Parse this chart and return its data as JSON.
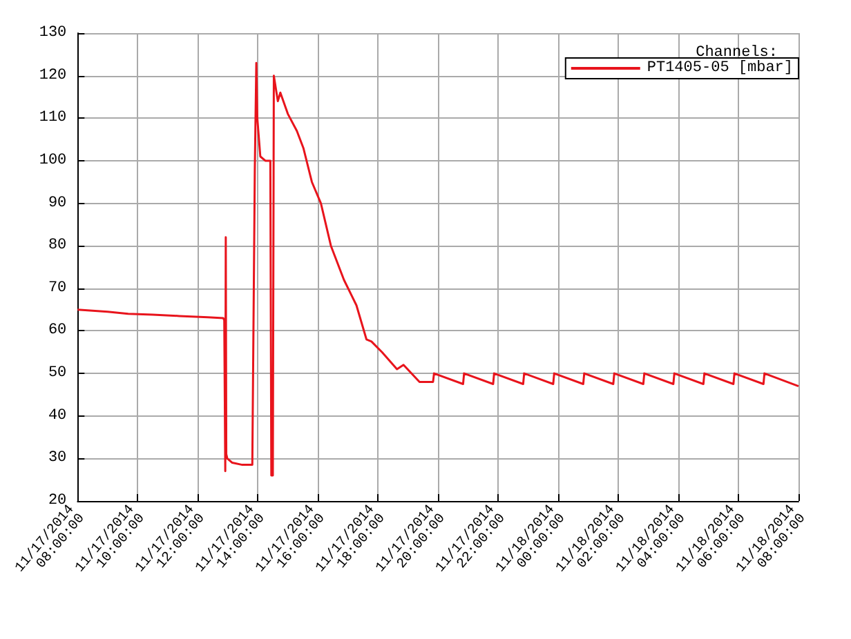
{
  "chart_data": {
    "type": "line",
    "legend_title": "Channels:",
    "legend": "top right",
    "grid": true,
    "marker": "none",
    "xlim": [
      "2014-11-17T08:00",
      "2014-11-18T08:00"
    ],
    "xticks": [
      {
        "value": "2014-11-17T08:00",
        "label": "11/17/2014\n08:00:00"
      },
      {
        "value": "2014-11-17T10:00",
        "label": "11/17/2014\n10:00:00"
      },
      {
        "value": "2014-11-17T12:00",
        "label": "11/17/2014\n12:00:00"
      },
      {
        "value": "2014-11-17T14:00",
        "label": "11/17/2014\n14:00:00"
      },
      {
        "value": "2014-11-17T16:00",
        "label": "11/17/2014\n16:00:00"
      },
      {
        "value": "2014-11-17T18:00",
        "label": "11/17/2014\n18:00:00"
      },
      {
        "value": "2014-11-17T20:00",
        "label": "11/17/2014\n20:00:00"
      },
      {
        "value": "2014-11-17T22:00",
        "label": "11/17/2014\n22:00:00"
      },
      {
        "value": "2014-11-18T00:00",
        "label": "11/18/2014\n00:00:00"
      },
      {
        "value": "2014-11-18T02:00",
        "label": "11/18/2014\n02:00:00"
      },
      {
        "value": "2014-11-18T04:00",
        "label": "11/18/2014\n04:00:00"
      },
      {
        "value": "2014-11-18T06:00",
        "label": "11/18/2014\n06:00:00"
      },
      {
        "value": "2014-11-18T08:00",
        "label": "11/18/2014\n08:00:00"
      }
    ],
    "ylim": [
      20,
      130
    ],
    "yticks": [
      20,
      30,
      40,
      50,
      60,
      70,
      80,
      90,
      100,
      110,
      120,
      130
    ],
    "x": [
      "2014-11-17T08:00",
      "2014-11-17T09:00",
      "2014-11-17T09:41",
      "2014-11-17T10:30",
      "2014-11-17T11:23",
      "2014-11-17T12:20",
      "2014-11-17T12:51",
      "2014-11-17T12:53",
      "2014-11-17T12:55",
      "2014-11-17T12:56",
      "2014-11-17T12:57",
      "2014-11-17T12:59",
      "2014-11-17T13:09",
      "2014-11-17T13:29",
      "2014-11-17T13:49",
      "2014-11-17T13:54",
      "2014-11-17T13:57",
      "2014-11-17T13:59",
      "2014-11-17T14:05",
      "2014-11-17T14:15",
      "2014-11-17T14:25",
      "2014-11-17T14:27",
      "2014-11-17T14:30",
      "2014-11-17T14:32",
      "2014-11-17T14:40",
      "2014-11-17T14:45",
      "2014-11-17T15:00",
      "2014-11-17T15:18",
      "2014-11-17T15:31",
      "2014-11-17T15:48",
      "2014-11-17T16:06",
      "2014-11-17T16:26",
      "2014-11-17T16:52",
      "2014-11-17T17:17",
      "2014-11-17T17:37",
      "2014-11-17T17:47",
      "2014-11-17T18:08",
      "2014-11-17T18:38",
      "2014-11-17T18:51",
      "2014-11-17T19:23",
      "2014-11-17T19:50",
      "2014-11-17T19:52",
      "2014-11-17T20:50",
      "2014-11-17T20:52",
      "2014-11-17T21:50",
      "2014-11-17T21:52",
      "2014-11-17T22:50",
      "2014-11-17T22:52",
      "2014-11-17T23:50",
      "2014-11-17T23:52",
      "2014-11-18T00:50",
      "2014-11-18T00:52",
      "2014-11-18T01:50",
      "2014-11-18T01:52",
      "2014-11-18T02:50",
      "2014-11-18T02:52",
      "2014-11-18T03:50",
      "2014-11-18T03:52",
      "2014-11-18T04:50",
      "2014-11-18T04:52",
      "2014-11-18T05:50",
      "2014-11-18T05:52",
      "2014-11-18T06:50",
      "2014-11-18T06:52",
      "2014-11-18T08:00"
    ],
    "series": [
      {
        "name": "PT1405-05 [mbar]",
        "color": "#e8141c",
        "values": [
          65,
          64.5,
          64,
          63.8,
          63.5,
          63.2,
          63,
          62.5,
          27,
          82,
          31,
          30,
          29,
          28.5,
          28.5,
          98,
          123,
          110,
          101,
          100,
          100,
          26,
          26,
          120,
          114,
          116,
          111,
          107,
          103,
          95,
          90,
          80,
          72,
          66,
          58,
          57.5,
          55,
          51,
          52,
          48,
          48,
          50,
          47.5,
          50,
          47.5,
          50,
          47.5,
          50,
          47.5,
          50,
          47.5,
          50,
          47.5,
          50,
          47.5,
          50,
          47.5,
          50,
          47.5,
          50,
          47.5,
          50,
          47.5,
          50,
          47
        ]
      }
    ]
  }
}
